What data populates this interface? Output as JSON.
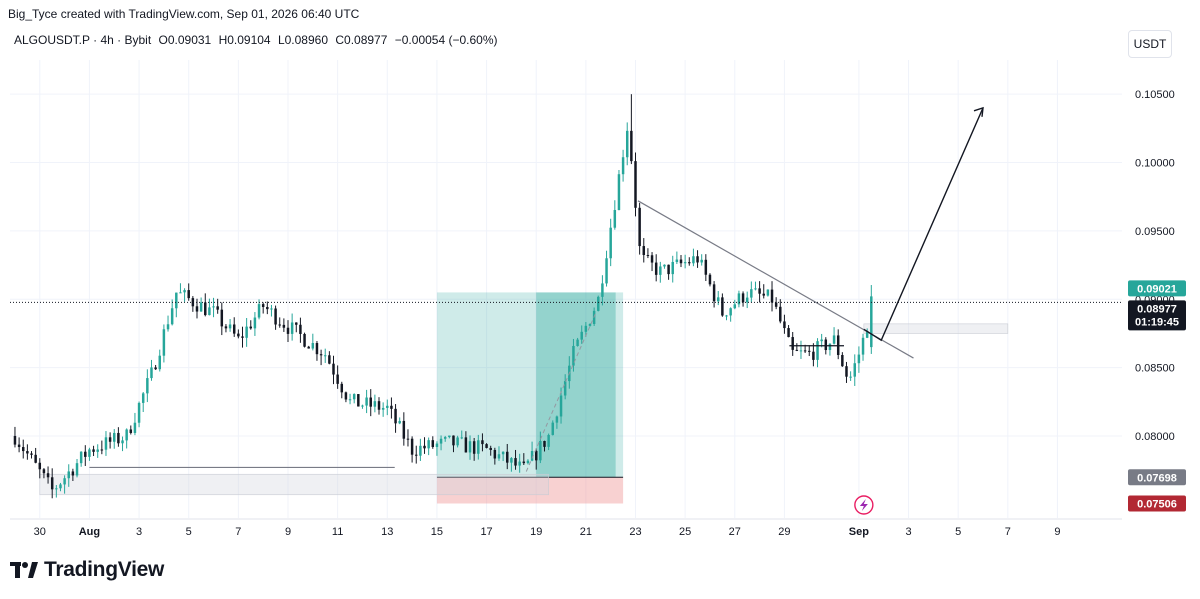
{
  "header": {
    "creator_line": "Big_Tyce created with TradingView.com, Sep 01, 2026 06:40 UTC"
  },
  "legend": {
    "symbol": "ALGOUSDT.P · 4h · Bybit",
    "open": "O0.09031",
    "high": "H0.09104",
    "low": "L0.08960",
    "close": "C0.08977",
    "change": "−0.00054 (−0.60%)"
  },
  "currency_button": "USDT",
  "brand": {
    "name": "TradingView"
  },
  "colors": {
    "up": "#26a69a",
    "down": "#131722",
    "tag_current": "#26a69a",
    "tag_gray": "#787b86",
    "tag_red": "#b22833",
    "profit_zone": "#26a69a",
    "loss_zone": "#ef9a9a"
  },
  "icons": {
    "lightning": "lightning-bolt-icon",
    "logo": "tradingview-logo-icon"
  },
  "chart_data": {
    "type": "candlestick",
    "interval": "4h",
    "y_axis": {
      "ticks": [
        "0.10500",
        "0.10000",
        "0.09500",
        "0.09000",
        "0.08500",
        "0.08000"
      ],
      "tick_values": [
        0.105,
        0.1,
        0.095,
        0.09,
        0.085,
        0.08
      ],
      "range": [
        0.074,
        0.1075
      ]
    },
    "x_axis": {
      "ticks": [
        "30",
        "Aug",
        "3",
        "5",
        "7",
        "9",
        "11",
        "13",
        "15",
        "17",
        "19",
        "21",
        "23",
        "25",
        "27",
        "29",
        "Sep",
        "3",
        "5",
        "7",
        "9"
      ],
      "tick_days": [
        -2,
        0,
        2,
        4,
        6,
        8,
        10,
        12,
        14,
        16,
        18,
        20,
        22,
        24,
        26,
        28,
        31,
        33,
        35,
        37,
        39
      ],
      "bold_ticks": [
        "Aug",
        "Sep"
      ],
      "day_range": [
        -3.2,
        41.6
      ]
    },
    "price_tags": [
      {
        "label": "0.09021",
        "value": 0.09021,
        "role": "last"
      },
      {
        "label": "0.08977",
        "value": 0.08977,
        "role": "current",
        "countdown": "01:19:45"
      },
      {
        "label": "0.07698",
        "value": 0.07698,
        "role": "stop-level"
      },
      {
        "label": "0.07506",
        "value": 0.07506,
        "role": "stop-loss"
      }
    ],
    "current_price": 0.08977,
    "anchors": [
      {
        "day": -3.0,
        "price": 0.08
      },
      {
        "day": -1.5,
        "price": 0.076
      },
      {
        "day": 0.0,
        "price": 0.079
      },
      {
        "day": 1.5,
        "price": 0.08
      },
      {
        "day": 2.5,
        "price": 0.0845
      },
      {
        "day": 3.5,
        "price": 0.0905
      },
      {
        "day": 5.0,
        "price": 0.089
      },
      {
        "day": 6.0,
        "price": 0.087
      },
      {
        "day": 7.0,
        "price": 0.0895
      },
      {
        "day": 8.0,
        "price": 0.088
      },
      {
        "day": 9.5,
        "price": 0.086
      },
      {
        "day": 10.5,
        "price": 0.0825
      },
      {
        "day": 12.0,
        "price": 0.082
      },
      {
        "day": 13.0,
        "price": 0.079
      },
      {
        "day": 14.5,
        "price": 0.0795
      },
      {
        "day": 16.0,
        "price": 0.079
      },
      {
        "day": 17.5,
        "price": 0.0775
      },
      {
        "day": 18.5,
        "price": 0.08
      },
      {
        "day": 19.5,
        "price": 0.086
      },
      {
        "day": 20.5,
        "price": 0.09
      },
      {
        "day": 21.2,
        "price": 0.0975
      },
      {
        "day": 21.7,
        "price": 0.103
      },
      {
        "day": 22.2,
        "price": 0.093
      },
      {
        "day": 23.0,
        "price": 0.092
      },
      {
        "day": 24.5,
        "price": 0.093
      },
      {
        "day": 25.5,
        "price": 0.089
      },
      {
        "day": 26.5,
        "price": 0.0905
      },
      {
        "day": 27.5,
        "price": 0.09
      },
      {
        "day": 28.3,
        "price": 0.086
      },
      {
        "day": 29.0,
        "price": 0.086
      },
      {
        "day": 30.0,
        "price": 0.087
      },
      {
        "day": 30.6,
        "price": 0.084
      },
      {
        "day": 31.1,
        "price": 0.0865
      },
      {
        "day": 31.6,
        "price": 0.0902
      }
    ]
  }
}
